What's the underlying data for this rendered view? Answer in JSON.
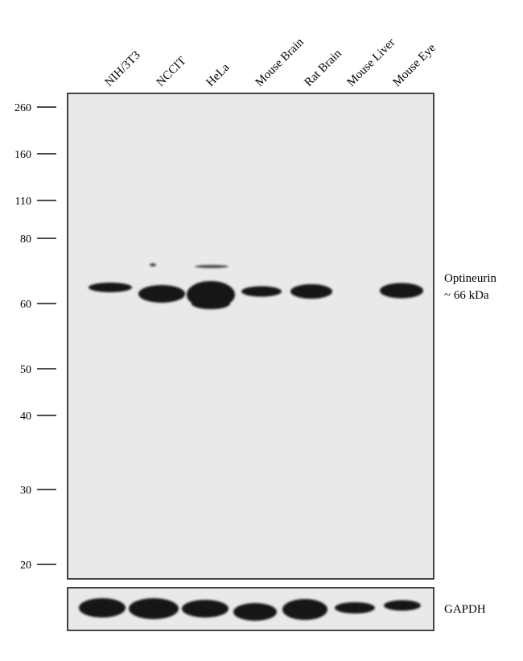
{
  "lanes": [
    "NIH/3T3",
    "NCCIT",
    "HeLa",
    "Mouse Brain",
    "Rat Brain",
    "Mouse Liver",
    "Mouse Eye"
  ],
  "markers": [
    "260",
    "160",
    "110",
    "80",
    "60",
    "50",
    "40",
    "30",
    "20"
  ],
  "target": {
    "name": "Optineurin",
    "size": "~ 66 kDa"
  },
  "loading_control": "GAPDH",
  "colors": {
    "membrane": "#e9e9e9",
    "band": "#141414",
    "frame": "#1a1a1a"
  }
}
